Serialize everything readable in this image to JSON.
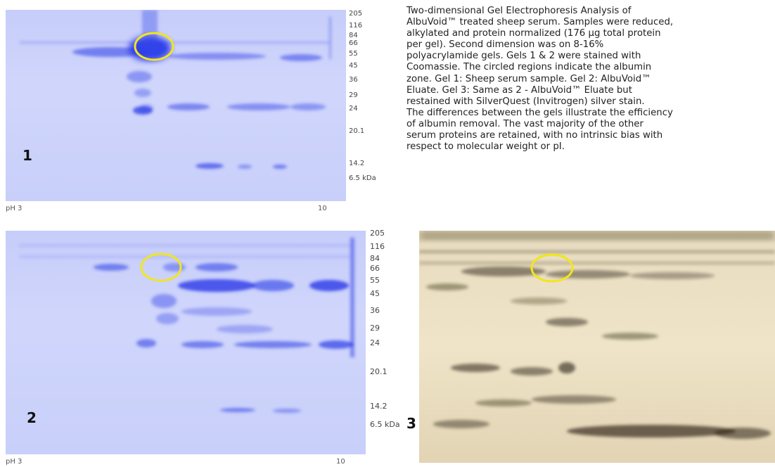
{
  "caption": {
    "lines": [
      "Two-dimensional Gel Electrophoresis Analysis of",
      "AlbuVoid™ treated sheep serum. Samples were reduced,",
      "alkylated and protein normalized (176 µg total protein",
      "per gel). Second dimension was on 8-16%",
      "polyacrylamide gels. Gels 1 & 2 were stained with",
      "Coomassie. The circled regions indicate the albumin",
      "zone. Gel 1: Sheep serum sample. Gel 2: AlbuVoid™",
      "Eluate. Gel 3: Same as 2 - AlbuVoid™ Eluate but",
      "restained with SilverQuest (Invitrogen) silver stain.",
      "The differences between the gels illustrate the efficiency",
      "of albumin removal. The vast majority of the other",
      "serum proteins are retained, with no intrinsic bias with",
      "respect to molecular weight or pI."
    ]
  },
  "gel1": {
    "number": "1",
    "ph_left": "pH 3",
    "ph_right": "10",
    "markers": [
      "205",
      "116",
      "84",
      "66",
      "55",
      "45",
      "36",
      "29",
      "24",
      "20.1",
      "14.2",
      "6.5 kDa"
    ]
  },
  "gel2": {
    "number": "2",
    "ph_left": "pH 3",
    "ph_right": "10",
    "markers": [
      "205",
      "116",
      "84",
      "66",
      "55",
      "45",
      "36",
      "29",
      "24",
      "20.1",
      "14.2",
      "6.5 kDa"
    ]
  },
  "gel3": {
    "number": "3"
  },
  "colors": {
    "coomassie": "#2a3ae8",
    "circle": "#f2e61a",
    "silver_spot": "#2a2010"
  }
}
